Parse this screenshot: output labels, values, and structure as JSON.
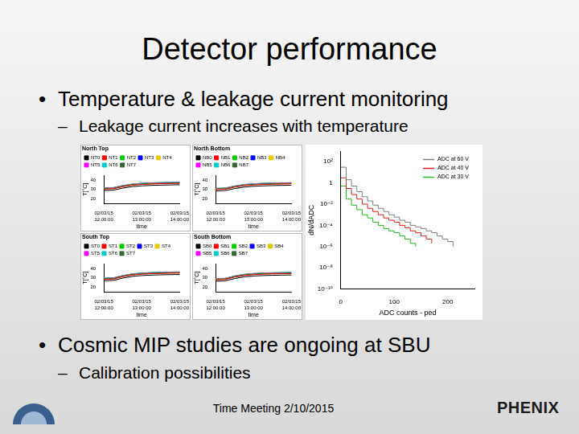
{
  "slide": {
    "title": "Detector performance",
    "bullets": [
      {
        "text": "Temperature & leakage current monitoring",
        "sub": [
          "Leakage current increases with temperature"
        ]
      },
      {
        "text": "Cosmic MIP studies are ongoing at SBU",
        "sub": [
          "Calibration possibilities"
        ]
      }
    ],
    "footer": "Time Meeting 2/10/2015",
    "logo": "PHENIX"
  },
  "chart_data": [
    {
      "type": "line",
      "title": "North Top",
      "x_label": "time",
      "y_label": "T[°C]",
      "categories": [
        "02/03/15 12:00:00",
        null,
        null,
        null,
        "02/03/15 13:00:00",
        null,
        null,
        null,
        "02/03/15 14:00:00"
      ],
      "ylim": [
        15,
        45
      ],
      "yticks": [
        20,
        30,
        40
      ],
      "grid": false,
      "legend": "top",
      "series": [
        {
          "name": "NT0",
          "color": "#000000",
          "values": [
            29.0,
            29.3,
            31.5,
            33.1,
            33.9,
            34.4,
            34.7,
            34.9,
            35.1
          ]
        },
        {
          "name": "NT1",
          "color": "#ff0000",
          "values": [
            30.5,
            30.8,
            33.0,
            34.6,
            35.4,
            35.9,
            36.2,
            36.4,
            36.6
          ]
        },
        {
          "name": "NT2",
          "color": "#00cc00",
          "values": [
            30.8,
            31.1,
            33.3,
            34.9,
            35.7,
            36.2,
            36.5,
            36.7,
            36.9
          ]
        },
        {
          "name": "NT3",
          "color": "#0000ff",
          "values": [
            31.0,
            31.3,
            33.5,
            35.1,
            35.9,
            36.4,
            36.7,
            36.9,
            37.1
          ]
        },
        {
          "name": "NT4",
          "color": "#e6c800",
          "values": [
            31.2,
            31.5,
            33.7,
            35.3,
            36.1,
            36.6,
            36.9,
            37.1,
            37.3
          ]
        },
        {
          "name": "NT5",
          "color": "#ff00ff",
          "values": [
            31.4,
            31.7,
            33.9,
            35.5,
            36.3,
            36.8,
            37.1,
            37.3,
            37.5
          ]
        },
        {
          "name": "NT6",
          "color": "#00cccc",
          "values": [
            31.6,
            31.9,
            34.1,
            35.7,
            36.5,
            37.0,
            37.3,
            37.5,
            37.7
          ]
        },
        {
          "name": "NT7",
          "color": "#336633",
          "values": [
            31.8,
            32.1,
            34.3,
            35.9,
            36.7,
            37.2,
            37.5,
            37.7,
            37.9
          ]
        }
      ]
    },
    {
      "type": "line",
      "title": "North Bottom",
      "x_label": "time",
      "y_label": "T[°C]",
      "categories": [
        "02/03/15 12:00:00",
        null,
        null,
        null,
        "02/03/15 13:00:00",
        null,
        null,
        null,
        "02/03/15 14:00:00"
      ],
      "ylim": [
        15,
        45
      ],
      "yticks": [
        20,
        30,
        40
      ],
      "grid": false,
      "legend": "top",
      "series": [
        {
          "name": "NB0",
          "color": "#000000",
          "values": [
            28.5,
            28.8,
            31.0,
            32.6,
            33.4,
            33.9,
            34.2,
            34.4,
            34.6
          ]
        },
        {
          "name": "NB1",
          "color": "#ff0000",
          "values": [
            30.0,
            30.3,
            32.5,
            34.1,
            34.9,
            35.4,
            35.7,
            35.9,
            36.1
          ]
        },
        {
          "name": "NB2",
          "color": "#00cc00",
          "values": [
            30.3,
            30.6,
            32.8,
            34.4,
            35.2,
            35.7,
            36.0,
            36.2,
            36.4
          ]
        },
        {
          "name": "NB3",
          "color": "#0000ff",
          "values": [
            30.5,
            30.8,
            33.0,
            34.6,
            35.4,
            35.9,
            36.2,
            36.4,
            36.6
          ]
        },
        {
          "name": "NB4",
          "color": "#e6c800",
          "values": [
            30.7,
            31.0,
            33.2,
            34.8,
            35.6,
            36.1,
            36.4,
            36.6,
            36.8
          ]
        },
        {
          "name": "NB5",
          "color": "#ff00ff",
          "values": [
            30.9,
            31.2,
            33.4,
            35.0,
            35.8,
            36.3,
            36.6,
            36.8,
            37.0
          ]
        },
        {
          "name": "NB6",
          "color": "#00cccc",
          "values": [
            31.1,
            31.4,
            33.6,
            35.2,
            36.0,
            36.5,
            36.8,
            37.0,
            37.2
          ]
        },
        {
          "name": "NB7",
          "color": "#336633",
          "values": [
            31.3,
            31.6,
            33.8,
            35.4,
            36.2,
            36.7,
            37.0,
            37.2,
            37.4
          ]
        }
      ]
    },
    {
      "type": "line",
      "title": "South Top",
      "x_label": "time",
      "y_label": "T[°C]",
      "categories": [
        "02/03/15 12:00:00",
        null,
        null,
        null,
        "02/03/15 13:00:00",
        null,
        null,
        null,
        "02/03/15 14:00:00"
      ],
      "ylim": [
        15,
        45
      ],
      "yticks": [
        20,
        30,
        40
      ],
      "grid": false,
      "legend": "top",
      "series": [
        {
          "name": "ST0",
          "color": "#000000",
          "values": [
            27.0,
            27.3,
            29.8,
            31.6,
            32.5,
            33.0,
            33.3,
            33.5,
            33.7
          ]
        },
        {
          "name": "ST1",
          "color": "#ff0000",
          "values": [
            28.5,
            28.8,
            31.3,
            33.1,
            34.0,
            34.5,
            34.8,
            35.0,
            35.2
          ]
        },
        {
          "name": "ST2",
          "color": "#00cc00",
          "values": [
            28.8,
            29.1,
            31.6,
            33.4,
            34.3,
            34.8,
            35.1,
            35.3,
            35.5
          ]
        },
        {
          "name": "ST3",
          "color": "#0000ff",
          "values": [
            29.0,
            29.3,
            31.8,
            33.6,
            34.5,
            35.0,
            35.3,
            35.5,
            35.7
          ]
        },
        {
          "name": "ST4",
          "color": "#e6c800",
          "values": [
            29.2,
            29.5,
            32.0,
            33.8,
            34.7,
            35.2,
            35.5,
            35.7,
            35.9
          ]
        },
        {
          "name": "ST5",
          "color": "#ff00ff",
          "values": [
            29.4,
            29.7,
            32.2,
            34.0,
            34.9,
            35.4,
            35.7,
            35.9,
            36.1
          ]
        },
        {
          "name": "ST6",
          "color": "#00cccc",
          "values": [
            29.6,
            29.9,
            32.4,
            34.2,
            35.1,
            35.6,
            35.9,
            36.1,
            36.3
          ]
        },
        {
          "name": "ST7",
          "color": "#336633",
          "values": [
            29.8,
            30.1,
            32.6,
            34.4,
            35.3,
            35.8,
            36.1,
            36.3,
            36.5
          ]
        }
      ]
    },
    {
      "type": "line",
      "title": "South Bottom",
      "x_label": "time",
      "y_label": "T[°C]",
      "categories": [
        "02/03/15 12:00:00",
        null,
        null,
        null,
        "02/03/15 13:00:00",
        null,
        null,
        null,
        "02/03/15 14:00:00"
      ],
      "ylim": [
        15,
        45
      ],
      "yticks": [
        20,
        30,
        40
      ],
      "grid": false,
      "legend": "top",
      "series": [
        {
          "name": "SB0",
          "color": "#000000",
          "values": [
            26.5,
            26.8,
            29.3,
            31.1,
            32.0,
            32.5,
            32.8,
            33.0,
            33.2
          ]
        },
        {
          "name": "SB1",
          "color": "#ff0000",
          "values": [
            28.0,
            28.3,
            30.8,
            32.6,
            33.5,
            34.0,
            34.3,
            34.5,
            34.7
          ]
        },
        {
          "name": "SB2",
          "color": "#00cc00",
          "values": [
            28.3,
            28.6,
            31.1,
            32.9,
            33.8,
            34.3,
            34.6,
            34.8,
            35.0
          ]
        },
        {
          "name": "SB3",
          "color": "#0000ff",
          "values": [
            28.5,
            28.8,
            31.3,
            33.1,
            34.0,
            34.5,
            34.8,
            35.0,
            35.2
          ]
        },
        {
          "name": "SB4",
          "color": "#e6c800",
          "values": [
            28.7,
            29.0,
            31.5,
            33.3,
            34.2,
            34.7,
            35.0,
            35.2,
            35.4
          ]
        },
        {
          "name": "SB5",
          "color": "#ff00ff",
          "values": [
            28.9,
            29.2,
            31.7,
            33.5,
            34.4,
            34.9,
            35.2,
            35.4,
            35.6
          ]
        },
        {
          "name": "SB6",
          "color": "#00cccc",
          "values": [
            29.1,
            29.4,
            31.9,
            33.7,
            34.6,
            35.1,
            35.4,
            35.6,
            35.8
          ]
        },
        {
          "name": "SB7",
          "color": "#336633",
          "values": [
            29.3,
            29.6,
            32.1,
            33.9,
            34.8,
            35.3,
            35.6,
            35.8,
            36.0
          ]
        }
      ]
    },
    {
      "type": "line",
      "x_label": "ADC counts - ped",
      "y_label": "dN/dADC",
      "x": [
        0,
        10,
        20,
        30,
        40,
        50,
        60,
        70,
        80,
        90,
        100,
        110,
        120,
        130,
        140,
        150,
        160,
        170,
        180,
        190,
        200,
        210
      ],
      "xlim": [
        0,
        250
      ],
      "xticks": [
        0,
        100,
        200
      ],
      "log": "y",
      "ylim": [
        1e-10,
        1000
      ],
      "yticks": [
        {
          "value": 100,
          "label": "10²"
        },
        {
          "value": 1,
          "label": "1"
        },
        {
          "value": 0.01,
          "label": "10⁻²"
        },
        {
          "value": 0.0001,
          "label": "10⁻⁴"
        },
        {
          "value": 1e-06,
          "label": "10⁻⁶"
        },
        {
          "value": 1e-08,
          "label": "10⁻⁸"
        },
        {
          "value": 1e-10,
          "label": "10⁻¹⁰"
        }
      ],
      "grid": false,
      "legend": "top-right",
      "series": [
        {
          "name": "ADC at 60 V",
          "color": "#808080",
          "values": [
            30,
            2,
            0.5,
            0.15,
            0.05,
            0.02,
            0.008,
            0.004,
            0.002,
            0.001,
            0.0006,
            0.0003,
            0.0002,
            0.0001,
            7e-05,
            5e-05,
            3e-05,
            2e-05,
            1e-05,
            5e-06,
            3e-06,
            1e-06
          ]
        },
        {
          "name": "ADC at 40 V",
          "color": "#e02020",
          "values": [
            3,
            0.3,
            0.08,
            0.03,
            0.01,
            0.004,
            0.002,
            0.001,
            0.0005,
            0.0003,
            0.0002,
            0.0001,
            6e-05,
            3e-05,
            2e-05,
            1e-05,
            5e-06,
            2e-06,
            null,
            null,
            null,
            null
          ]
        },
        {
          "name": "ADC at 30 V",
          "color": "#22bb22",
          "values": [
            0.5,
            0.03,
            0.008,
            0.003,
            0.001,
            0.0005,
            0.0002,
            0.0001,
            5e-05,
            3e-05,
            2e-05,
            1e-05,
            5e-06,
            2e-06,
            1e-06,
            null,
            null,
            null,
            null,
            null,
            null,
            null
          ]
        }
      ]
    }
  ]
}
